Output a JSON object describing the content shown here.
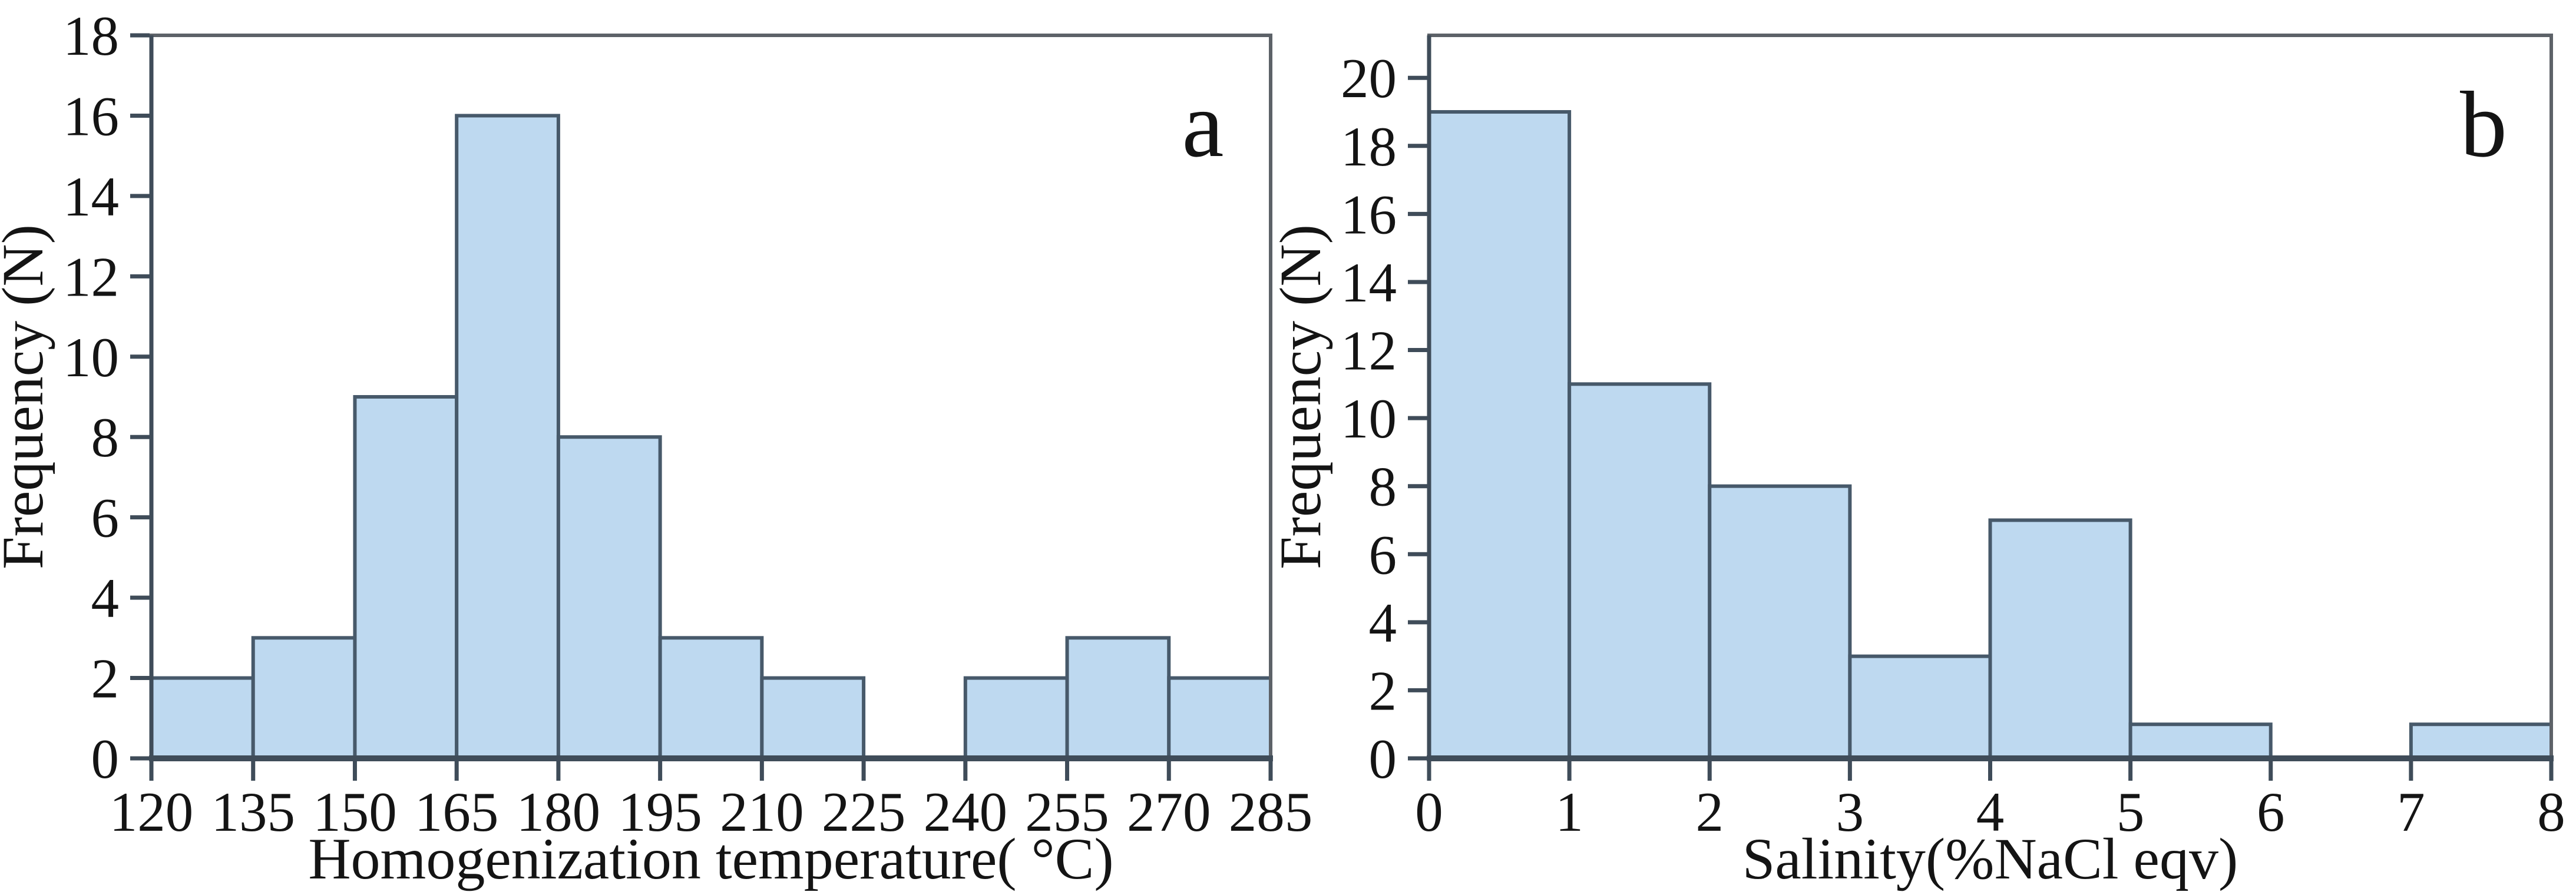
{
  "figure": {
    "background": "#ffffff",
    "description": "Two-panel histogram figure"
  },
  "style": {
    "bar_fill": "#bed9f0",
    "bar_stroke": "#47596a",
    "axis_color": "#3f4c59",
    "frame_color": "#5d6268",
    "text_color": "#141414"
  },
  "chart_data": [
    {
      "type": "bar",
      "panel_label": "a",
      "xlabel": "Homogenization temperature( °C)",
      "ylabel": "Frequency (N)",
      "bins": {
        "start": 120,
        "width": 15
      },
      "categories": [
        "120-135",
        "135-150",
        "150-165",
        "165-180",
        "180-195",
        "195-210",
        "210-225",
        "225-240",
        "240-255",
        "255-270",
        "270-285"
      ],
      "values": [
        2,
        3,
        9,
        16,
        8,
        3,
        2,
        0,
        2,
        3,
        2
      ],
      "xticks": [
        120,
        135,
        150,
        165,
        180,
        195,
        210,
        225,
        240,
        255,
        270,
        285
      ],
      "yticks": [
        0,
        2,
        4,
        6,
        8,
        10,
        12,
        14,
        16,
        18
      ],
      "xlim": [
        120,
        285
      ],
      "ylim": [
        0,
        18
      ],
      "grid": false,
      "legend": null
    },
    {
      "type": "bar",
      "panel_label": "b",
      "xlabel": "Salinity(%NaCl eqv)",
      "ylabel": "Frequency (N)",
      "bins": {
        "start": 0,
        "width": 1
      },
      "categories": [
        "0-1",
        "1-2",
        "2-3",
        "3-4",
        "4-5",
        "5-6",
        "6-7",
        "7-8"
      ],
      "values": [
        19,
        11,
        8,
        3,
        7,
        1,
        0,
        1
      ],
      "xticks": [
        0,
        1,
        2,
        3,
        4,
        5,
        6,
        7,
        8
      ],
      "yticks": [
        0,
        2,
        4,
        6,
        8,
        10,
        12,
        14,
        16,
        18,
        20
      ],
      "xlim": [
        0,
        8
      ],
      "ylim": [
        0,
        21.25
      ],
      "grid": false,
      "legend": null
    }
  ]
}
